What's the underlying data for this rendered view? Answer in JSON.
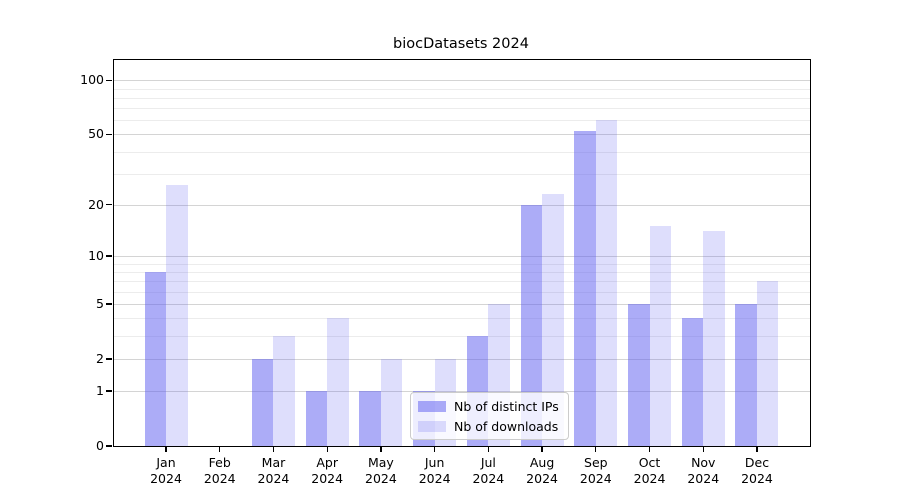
{
  "title": "biocDatasets 2024",
  "chart_data": {
    "type": "bar",
    "title": "biocDatasets 2024",
    "categories": [
      "Jan 2024",
      "Feb 2024",
      "Mar 2024",
      "Apr 2024",
      "May 2024",
      "Jun 2024",
      "Jul 2024",
      "Aug 2024",
      "Sep 2024",
      "Oct 2024",
      "Nov 2024",
      "Dec 2024"
    ],
    "series": [
      {
        "name": "Nb of distinct IPs",
        "color": "#aaaaf2",
        "fill_rgba": "rgba(90,90,240,0.50)",
        "values": [
          8,
          0,
          2,
          1,
          1,
          1,
          3,
          20,
          52,
          5,
          4,
          5
        ]
      },
      {
        "name": "Nb of downloads",
        "color": "#dcdcfa",
        "fill_rgba": "rgba(90,90,240,0.20)",
        "values": [
          26,
          0,
          3,
          4,
          2,
          2,
          5,
          23,
          60,
          15,
          14,
          7
        ]
      }
    ],
    "yscale": "log1p",
    "ylim": [
      0,
      129
    ],
    "yticks": [
      0,
      1,
      2,
      5,
      10,
      20,
      50,
      100
    ],
    "minor_gridlines": [
      3,
      4,
      6,
      7,
      8,
      9,
      30,
      40,
      60,
      70,
      80,
      90
    ],
    "grid": true,
    "legend": {
      "position": "lower-center",
      "entries": [
        "Nb of distinct IPs",
        "Nb of downloads"
      ]
    }
  },
  "colors": {
    "background": "#ffffff",
    "spine": "#000000",
    "major_grid": "#d4d4d4",
    "minor_grid": "#ececec",
    "legend_border": "#cccccc",
    "legend_bg": "rgba(255,255,255,0.8)",
    "text": "#000000"
  }
}
